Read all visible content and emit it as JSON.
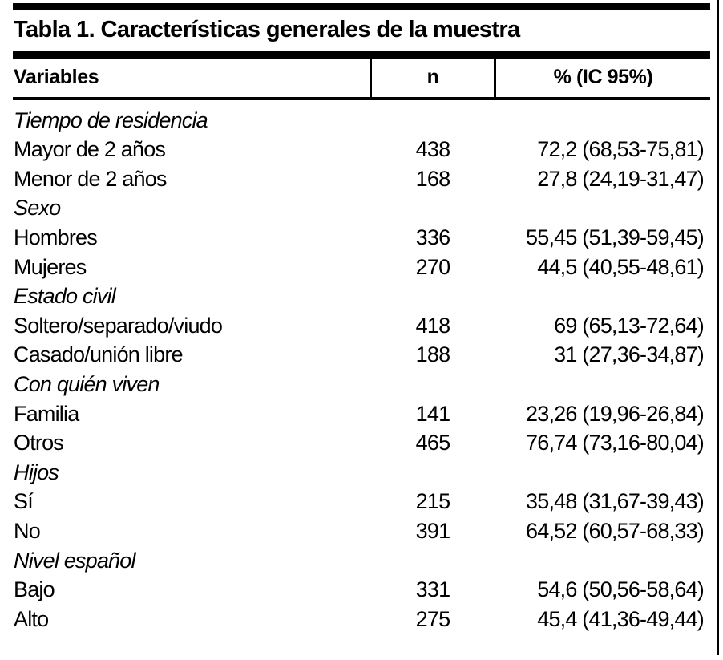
{
  "page": {
    "background": "#ffffff",
    "text_color": "#000000",
    "rule_color": "#000000"
  },
  "chart_data": {
    "type": "table",
    "title": "Tabla 1. Características generales de la muestra",
    "columns": [
      "Variables",
      "n",
      "% (IC 95%)"
    ],
    "rows": [
      {
        "label": "Tiempo de residencia",
        "group": true,
        "n": "",
        "pct": ""
      },
      {
        "label": "Mayor de 2 años",
        "group": false,
        "n": "438",
        "pct": "72,2 (68,53-75,81)"
      },
      {
        "label": "Menor de 2 años",
        "group": false,
        "n": "168",
        "pct": "27,8 (24,19-31,47)"
      },
      {
        "label": "Sexo",
        "group": true,
        "n": "",
        "pct": ""
      },
      {
        "label": "Hombres",
        "group": false,
        "n": "336",
        "pct": "55,45 (51,39-59,45)"
      },
      {
        "label": "Mujeres",
        "group": false,
        "n": "270",
        "pct": "44,5 (40,55-48,61)"
      },
      {
        "label": "Estado civil",
        "group": true,
        "n": "",
        "pct": ""
      },
      {
        "label": "Soltero/separado/viudo",
        "group": false,
        "n": "418",
        "pct": "69 (65,13-72,64)"
      },
      {
        "label": "Casado/unión libre",
        "group": false,
        "n": "188",
        "pct": "31 (27,36-34,87)"
      },
      {
        "label": "Con quién viven",
        "group": true,
        "n": "",
        "pct": ""
      },
      {
        "label": "Familia",
        "group": false,
        "n": "141",
        "pct": "23,26 (19,96-26,84)"
      },
      {
        "label": "Otros",
        "group": false,
        "n": "465",
        "pct": "76,74 (73,16-80,04)"
      },
      {
        "label": "Hijos",
        "group": true,
        "n": "",
        "pct": ""
      },
      {
        "label": "Sí",
        "group": false,
        "n": "215",
        "pct": "35,48 (31,67-39,43)"
      },
      {
        "label": "No",
        "group": false,
        "n": "391",
        "pct": "64,52 (60,57-68,33)"
      },
      {
        "label": "Nivel español",
        "group": true,
        "n": "",
        "pct": ""
      },
      {
        "label": "Bajo",
        "group": false,
        "n": "331",
        "pct": "54,6 (50,56-58,64)"
      },
      {
        "label": "Alto",
        "group": false,
        "n": "275",
        "pct": "45,4 (41,36-49,44)"
      }
    ]
  }
}
